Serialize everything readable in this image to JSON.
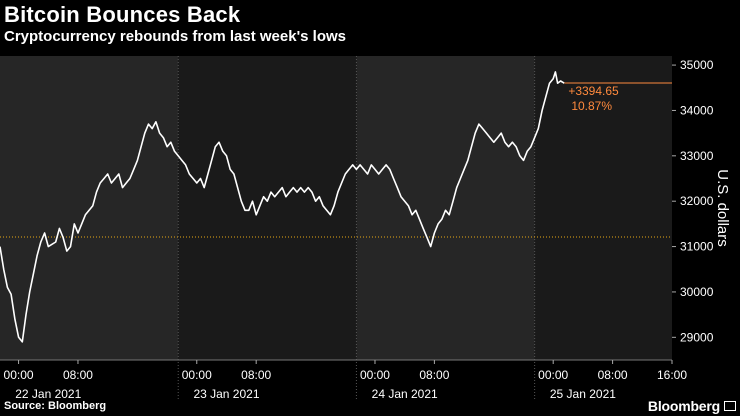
{
  "header": {
    "title": "Bitcoin Bounces Back",
    "subtitle": "Cryptocurrency rebounds from last week's lows"
  },
  "footer": {
    "source": "Source: Bloomberg",
    "brand": "Bloomberg"
  },
  "colors": {
    "background": "#000000",
    "panel_dark": "#262626",
    "panel_light": "#1a1a1a",
    "line": "#ffffff",
    "reference_line": "#e6a817",
    "annotation": "#ff8a3d",
    "grid": "#555555"
  },
  "chart_data": {
    "type": "line",
    "title": "Bitcoin Bounces Back",
    "subtitle": "Cryptocurrency rebounds from last week's lows",
    "ylabel": "U.S. dollars",
    "ylim": [
      28500,
      35200
    ],
    "y_ticks": [
      29000,
      30000,
      31000,
      32000,
      33000,
      34000,
      35000
    ],
    "y_tick_labels": [
      "29000",
      "30000",
      "31000",
      "32000",
      "33000",
      "34000",
      "35000"
    ],
    "x_unit": "hours since 22 Jan 2021 00:00",
    "xlim": [
      -2.5,
      88
    ],
    "x_tick_labels": [
      {
        "x": 0,
        "label": "00:00"
      },
      {
        "x": 8,
        "label": "08:00"
      },
      {
        "x": 24,
        "label": "00:00"
      },
      {
        "x": 32,
        "label": "08:00"
      },
      {
        "x": 48,
        "label": "00:00"
      },
      {
        "x": 56,
        "label": "08:00"
      },
      {
        "x": 72,
        "label": "00:00"
      },
      {
        "x": 80,
        "label": "08:00"
      },
      {
        "x": 88,
        "label": "16:00"
      }
    ],
    "day_labels": [
      {
        "x": 4,
        "label": "22 Jan 2021"
      },
      {
        "x": 28,
        "label": "23 Jan 2021"
      },
      {
        "x": 52,
        "label": "24 Jan 2021"
      },
      {
        "x": 76,
        "label": "25 Jan 2021"
      }
    ],
    "day_separators": [
      21.5,
      45.5,
      69.5
    ],
    "reference_line": {
      "y": 31210,
      "label": ""
    },
    "annotation": {
      "change": "+3394.65",
      "percent": "10.87%",
      "y": 34605
    },
    "grid": "vertical dotted at day boundaries",
    "series": [
      {
        "values": [
          [
            -2.5,
            31000
          ],
          [
            -2,
            30500
          ],
          [
            -1.5,
            30100
          ],
          [
            -1,
            29950
          ],
          [
            -0.5,
            29400
          ],
          [
            0,
            29000
          ],
          [
            0.5,
            28900
          ],
          [
            1,
            29500
          ],
          [
            1.5,
            30000
          ],
          [
            2,
            30400
          ],
          [
            2.5,
            30800
          ],
          [
            3,
            31100
          ],
          [
            3.5,
            31300
          ],
          [
            4,
            31000
          ],
          [
            5,
            31100
          ],
          [
            5.5,
            31400
          ],
          [
            6,
            31200
          ],
          [
            6.5,
            30900
          ],
          [
            7,
            31000
          ],
          [
            7.5,
            31500
          ],
          [
            8,
            31300
          ],
          [
            8.5,
            31500
          ],
          [
            9,
            31700
          ],
          [
            9.5,
            31800
          ],
          [
            10,
            31900
          ],
          [
            10.5,
            32200
          ],
          [
            11,
            32400
          ],
          [
            11.5,
            32500
          ],
          [
            12,
            32600
          ],
          [
            12.5,
            32400
          ],
          [
            13,
            32500
          ],
          [
            13.5,
            32600
          ],
          [
            14,
            32300
          ],
          [
            14.5,
            32400
          ],
          [
            15,
            32500
          ],
          [
            15.5,
            32700
          ],
          [
            16,
            32900
          ],
          [
            16.5,
            33200
          ],
          [
            17,
            33500
          ],
          [
            17.5,
            33700
          ],
          [
            18,
            33600
          ],
          [
            18.5,
            33750
          ],
          [
            19,
            33500
          ],
          [
            19.5,
            33400
          ],
          [
            20,
            33200
          ],
          [
            20.5,
            33300
          ],
          [
            21,
            33100
          ],
          [
            21.5,
            33000
          ],
          [
            22,
            32900
          ],
          [
            22.5,
            32800
          ],
          [
            23,
            32600
          ],
          [
            23.5,
            32500
          ],
          [
            24,
            32400
          ],
          [
            24.5,
            32500
          ],
          [
            25,
            32300
          ],
          [
            25.5,
            32600
          ],
          [
            26,
            32900
          ],
          [
            26.5,
            33200
          ],
          [
            27,
            33300
          ],
          [
            27.5,
            33100
          ],
          [
            28,
            33000
          ],
          [
            28.5,
            32700
          ],
          [
            29,
            32600
          ],
          [
            29.5,
            32300
          ],
          [
            30,
            32000
          ],
          [
            30.5,
            31800
          ],
          [
            31,
            31800
          ],
          [
            31.5,
            32000
          ],
          [
            32,
            31700
          ],
          [
            32.5,
            31900
          ],
          [
            33,
            32100
          ],
          [
            33.5,
            32000
          ],
          [
            34,
            32200
          ],
          [
            34.5,
            32100
          ],
          [
            35,
            32200
          ],
          [
            35.5,
            32300
          ],
          [
            36,
            32100
          ],
          [
            36.5,
            32200
          ],
          [
            37,
            32300
          ],
          [
            37.5,
            32200
          ],
          [
            38,
            32300
          ],
          [
            38.5,
            32200
          ],
          [
            39,
            32300
          ],
          [
            39.5,
            32200
          ],
          [
            40,
            32000
          ],
          [
            40.5,
            32100
          ],
          [
            41,
            31900
          ],
          [
            41.5,
            31800
          ],
          [
            42,
            31700
          ],
          [
            42.5,
            31900
          ],
          [
            43,
            32200
          ],
          [
            43.5,
            32400
          ],
          [
            44,
            32600
          ],
          [
            44.5,
            32700
          ],
          [
            45,
            32800
          ],
          [
            45.5,
            32700
          ],
          [
            46,
            32800
          ],
          [
            46.5,
            32700
          ],
          [
            47,
            32600
          ],
          [
            47.5,
            32800
          ],
          [
            48,
            32700
          ],
          [
            48.5,
            32600
          ],
          [
            49,
            32700
          ],
          [
            49.5,
            32800
          ],
          [
            50,
            32700
          ],
          [
            50.5,
            32500
          ],
          [
            51,
            32300
          ],
          [
            51.5,
            32100
          ],
          [
            52,
            32000
          ],
          [
            52.5,
            31900
          ],
          [
            53,
            31700
          ],
          [
            53.5,
            31800
          ],
          [
            54,
            31600
          ],
          [
            54.5,
            31400
          ],
          [
            55,
            31200
          ],
          [
            55.5,
            31000
          ],
          [
            56,
            31300
          ],
          [
            56.5,
            31500
          ],
          [
            57,
            31600
          ],
          [
            57.5,
            31800
          ],
          [
            58,
            31700
          ],
          [
            58.5,
            32000
          ],
          [
            59,
            32300
          ],
          [
            59.5,
            32500
          ],
          [
            60,
            32700
          ],
          [
            60.5,
            32900
          ],
          [
            61,
            33200
          ],
          [
            61.5,
            33500
          ],
          [
            62,
            33700
          ],
          [
            62.5,
            33600
          ],
          [
            63,
            33500
          ],
          [
            63.5,
            33400
          ],
          [
            64,
            33300
          ],
          [
            64.5,
            33400
          ],
          [
            65,
            33500
          ],
          [
            65.5,
            33300
          ],
          [
            66,
            33200
          ],
          [
            66.5,
            33300
          ],
          [
            67,
            33200
          ],
          [
            67.5,
            33000
          ],
          [
            68,
            32900
          ],
          [
            68.5,
            33100
          ],
          [
            69,
            33200
          ],
          [
            69.5,
            33400
          ],
          [
            70,
            33600
          ],
          [
            70.5,
            34000
          ],
          [
            71,
            34300
          ],
          [
            71.5,
            34600
          ],
          [
            72,
            34700
          ],
          [
            72.3,
            34850
          ],
          [
            72.6,
            34600
          ],
          [
            73,
            34650
          ],
          [
            73.5,
            34600
          ]
        ]
      }
    ]
  }
}
